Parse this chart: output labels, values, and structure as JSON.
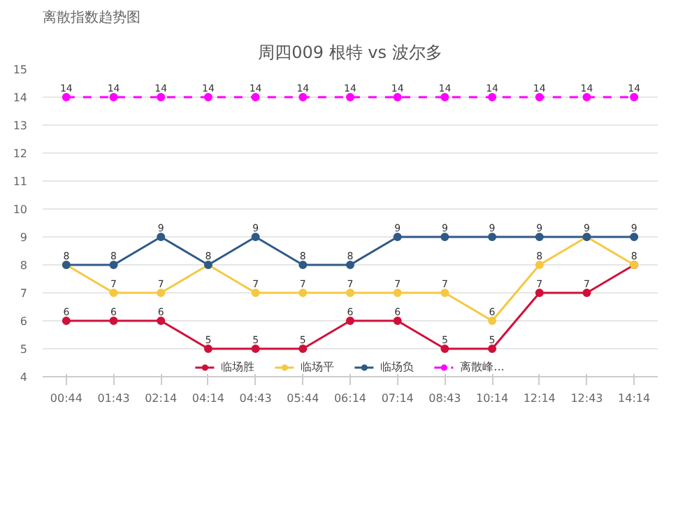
{
  "chart_data": {
    "type": "line",
    "title": "周四009 根特 vs 波尔多",
    "annotations": [
      "离散指数趋势图"
    ],
    "categories": [
      "00:44",
      "01:43",
      "02:14",
      "04:14",
      "04:43",
      "05:44",
      "06:14",
      "07:14",
      "08:43",
      "10:14",
      "12:14",
      "12:43",
      "14:14"
    ],
    "series": [
      {
        "name": "临场胜",
        "color": "#d0103a",
        "values": [
          6,
          6,
          6,
          5,
          5,
          5,
          6,
          6,
          5,
          5,
          7,
          7,
          8
        ],
        "value_labels": [
          "6",
          "6",
          "6",
          "5",
          "5",
          "5",
          "6",
          "6",
          "5",
          "5",
          "7",
          "7",
          "8"
        ]
      },
      {
        "name": "临场平",
        "color": "#f5c842",
        "values": [
          8,
          7,
          7,
          8,
          7,
          7,
          7,
          7,
          7,
          6,
          8,
          9,
          8
        ],
        "value_labels": [
          null,
          "7",
          "7",
          null,
          "7",
          "7",
          "7",
          "7",
          "7",
          "6",
          "8",
          null,
          null
        ]
      },
      {
        "name": "临场负",
        "color": "#2f5a85",
        "values": [
          8,
          8,
          9,
          8,
          9,
          8,
          8,
          9,
          9,
          9,
          9,
          9,
          9
        ],
        "value_labels": [
          "8",
          "8",
          "9",
          "8",
          "9",
          "8",
          "8",
          "9",
          "9",
          "9",
          "9",
          "9",
          "9"
        ]
      },
      {
        "name": "离散峰...",
        "color": "#ff00ff",
        "line_style": "dashed",
        "values": [
          14,
          14,
          14,
          14,
          14,
          14,
          14,
          14,
          14,
          14,
          14,
          14,
          14
        ],
        "value_labels": [
          "14",
          "14",
          "14",
          "14",
          "14",
          "14",
          "14",
          "14",
          "14",
          "14",
          "14",
          "14",
          "14"
        ]
      }
    ],
    "ylim": [
      4,
      15
    ],
    "yticks": [
      4,
      5,
      6,
      7,
      8,
      9,
      10,
      11,
      12,
      13,
      14,
      15
    ],
    "grid": "y",
    "legend": "bottom",
    "marker": "circle",
    "line_style": "solid"
  }
}
